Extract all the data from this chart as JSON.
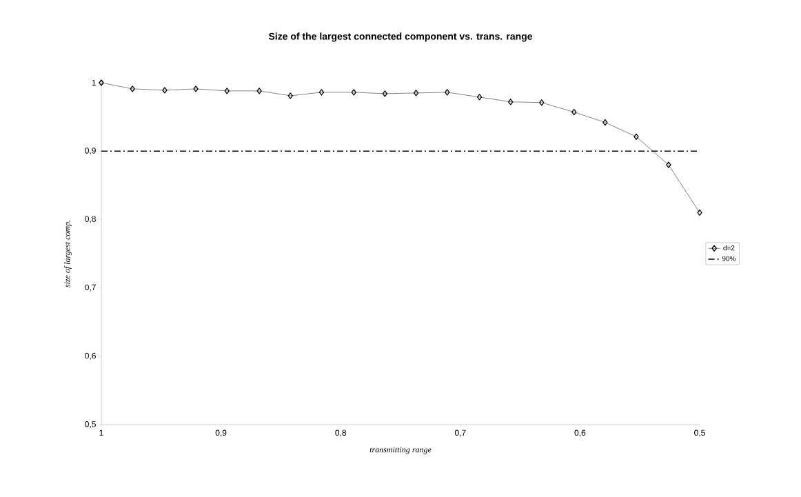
{
  "chart_data": {
    "type": "line",
    "title": "Size of the largest connected component vs. trans. range",
    "xlabel": "transmitting range",
    "ylabel": "size of largest comp.",
    "series": [
      {
        "name": "d=2",
        "color": "#000000",
        "x": [
          1,
          0.974,
          0.947,
          0.921,
          0.895,
          0.868,
          0.842,
          0.816,
          0.789,
          0.763,
          0.737,
          0.711,
          0.684,
          0.658,
          0.632,
          0.605,
          0.579,
          0.553,
          0.526,
          0.5
        ],
        "values": [
          1.0,
          0.991,
          0.989,
          0.991,
          0.988,
          0.988,
          0.981,
          0.986,
          0.986,
          0.984,
          0.985,
          0.986,
          0.979,
          0.972,
          0.971,
          0.957,
          0.942,
          0.921,
          0.88,
          0.81
        ]
      }
    ],
    "ref_lines": [
      {
        "axis": "y",
        "value": 0.9,
        "label": "90%",
        "color": "#000000",
        "line_style": "dashdot"
      }
    ],
    "xlim": [
      1,
      0.5
    ],
    "ylim": [
      0.5,
      1
    ],
    "xticks": [
      1,
      {
        "value": 0.9,
        "label": "0,9"
      },
      {
        "value": 0.8,
        "label": "0,8"
      },
      {
        "value": 0.7,
        "label": "0,7"
      },
      {
        "value": 0.6,
        "label": "0,6"
      },
      {
        "value": 0.5,
        "label": "0,5"
      }
    ],
    "yticks": [
      {
        "value": 0.5,
        "label": "0,5"
      },
      {
        "value": 0.6,
        "label": "0,6"
      },
      {
        "value": 0.7,
        "label": "0,7"
      },
      {
        "value": 0.8,
        "label": "0,8"
      },
      {
        "value": 0.9,
        "label": "0,9"
      },
      1
    ],
    "marker": "diamond",
    "legend": "right",
    "grid": false
  }
}
